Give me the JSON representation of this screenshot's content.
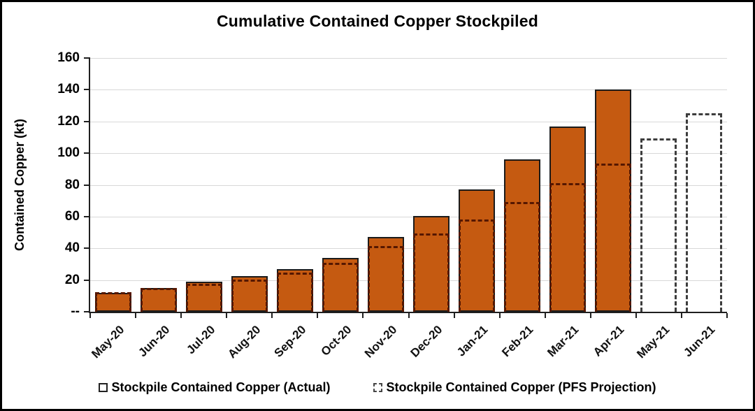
{
  "title": "Cumulative Contained Copper Stockpiled",
  "y_axis": {
    "label": "Contained Copper (kt)",
    "zero_label": "--",
    "tick_labels": [
      "--",
      "20",
      "40",
      "60",
      "80",
      "100",
      "120",
      "140",
      "160"
    ]
  },
  "legend": [
    {
      "label": "Stockpile Contained Copper (Actual)",
      "marker": "solid-orange-square"
    },
    {
      "label": "Stockpile Contained Copper (PFS Projection)",
      "marker": "dashed-outline-square"
    }
  ],
  "colors": {
    "bar_fill": "#C55A11",
    "bar_border": "#1b1b1b",
    "projection_dash_over_bar": "#551700",
    "projection_dash_standalone": "#3d3d3d",
    "gridline": "#d8d8d8",
    "axis": "#1f1f1f"
  },
  "chart_data": {
    "type": "bar",
    "title": "Cumulative Contained Copper Stockpiled",
    "xlabel": "",
    "ylabel": "Contained Copper (kt)",
    "categories": [
      "May-20",
      "Jun-20",
      "Jul-20",
      "Aug-20",
      "Sep-20",
      "Oct-20",
      "Nov-20",
      "Dec-20",
      "Jan-21",
      "Feb-21",
      "Mar-21",
      "Apr-21",
      "May-21",
      "Jun-21"
    ],
    "series": [
      {
        "name": "Stockpile Contained Copper (Actual)",
        "style": "solid",
        "values": [
          12,
          15,
          19,
          22.5,
          27,
          34,
          47,
          60.5,
          77,
          96,
          117,
          140,
          null,
          null
        ]
      },
      {
        "name": "Stockpile Contained Copper (PFS Projection)",
        "style": "dashed",
        "values": [
          12.5,
          15,
          17.5,
          20.5,
          24.5,
          31,
          41.5,
          49.5,
          58,
          69,
          81,
          93.5,
          109.5,
          125
        ]
      }
    ],
    "ylim": [
      0,
      160
    ],
    "ytick_interval": 20,
    "grid": "horizontal",
    "legend_position": "bottom"
  }
}
